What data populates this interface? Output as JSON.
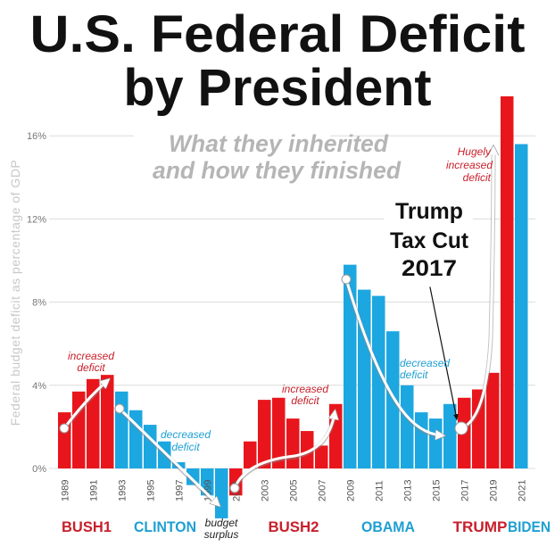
{
  "chart_data": {
    "type": "bar",
    "title": "U.S. Federal Deficit by President",
    "title_lines": [
      "U.S. Federal Deficit",
      "by President"
    ],
    "subtitle_lines": [
      "What they inherited",
      "and how they finished"
    ],
    "ylabel": "Federal budget deficit as percentage of GDP",
    "ylim": [
      -2.5,
      18
    ],
    "yticks": [
      0,
      4,
      8,
      12,
      16
    ],
    "ytick_labels": [
      "0%",
      "4%",
      "8%",
      "12%",
      "16%"
    ],
    "grid": true,
    "x_tick_labels": [
      "1989",
      "1991",
      "1993",
      "1995",
      "1997",
      "1999",
      "2001",
      "2003",
      "2005",
      "2007",
      "2009",
      "2011",
      "2013",
      "2015",
      "2017",
      "2019",
      "2021"
    ],
    "categories": [
      1989,
      1990,
      1991,
      1992,
      1993,
      1994,
      1995,
      1996,
      1997,
      1998,
      1999,
      2000,
      2001,
      2002,
      2003,
      2004,
      2005,
      2006,
      2007,
      2008,
      2009,
      2010,
      2011,
      2012,
      2013,
      2014,
      2015,
      2016,
      2017,
      2018,
      2019,
      2020,
      2021
    ],
    "values": [
      2.7,
      3.7,
      4.3,
      4.5,
      3.7,
      2.8,
      2.1,
      1.3,
      0.3,
      -0.8,
      -1.3,
      -2.4,
      -1.3,
      1.3,
      3.3,
      3.4,
      2.4,
      1.8,
      1.1,
      3.1,
      9.8,
      8.6,
      8.3,
      6.6,
      4.0,
      2.7,
      2.4,
      3.1,
      3.4,
      3.8,
      4.6,
      17.9,
      15.6
    ],
    "party": [
      "R",
      "R",
      "R",
      "R",
      "D",
      "D",
      "D",
      "D",
      "D",
      "D",
      "D",
      "D",
      "R",
      "R",
      "R",
      "R",
      "R",
      "R",
      "R",
      "R",
      "D",
      "D",
      "D",
      "D",
      "D",
      "D",
      "D",
      "D",
      "R",
      "R",
      "R",
      "R",
      "D"
    ],
    "colors": {
      "R": "#e8161c",
      "D": "#1ca7e1",
      "R_label": "#c8202b",
      "D_label": "#1e9fd2"
    },
    "presidents": [
      {
        "name": "BUSH1",
        "party": "R"
      },
      {
        "name": "CLINTON",
        "party": "D"
      },
      {
        "name": "BUSH2",
        "party": "R"
      },
      {
        "name": "OBAMA",
        "party": "D"
      },
      {
        "name": "TRUMP",
        "party": "R"
      },
      {
        "name": "BIDEN",
        "party": "D"
      }
    ],
    "annotations": {
      "bush1": [
        "increased",
        "deficit"
      ],
      "clinton": [
        "decreased",
        "deficit"
      ],
      "surplus": [
        "budget",
        "surplus"
      ],
      "bush2": [
        "increased",
        "deficit"
      ],
      "obama": [
        "decreased",
        "deficit"
      ],
      "trump": [
        "Hugely",
        "increased",
        "deficit"
      ],
      "tax_cut": [
        "Trump",
        "Tax Cut",
        "2017"
      ]
    }
  }
}
